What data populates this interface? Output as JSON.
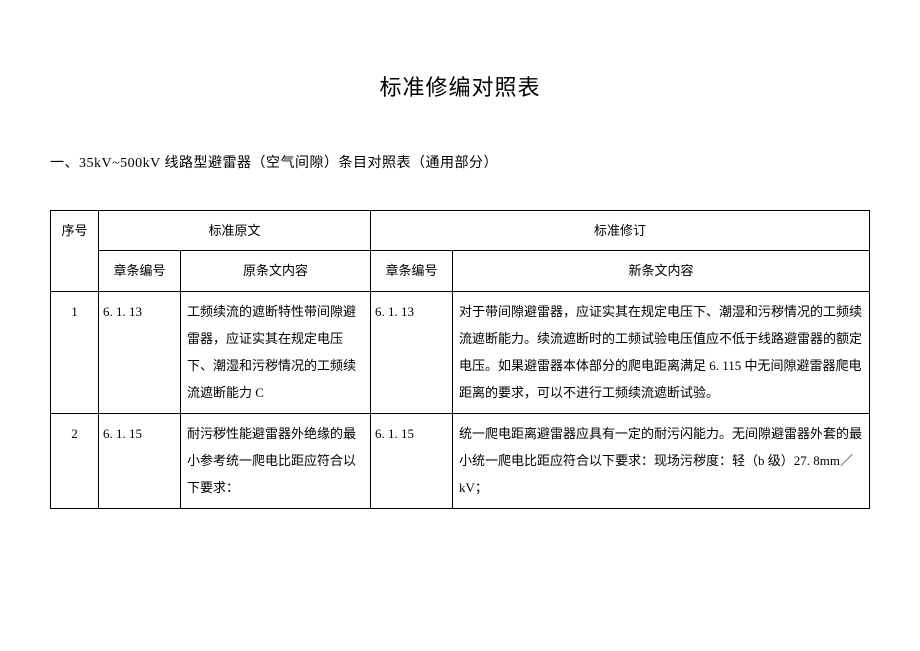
{
  "title": "标准修编对照表",
  "subtitle": "一、35kV~500kV 线路型避雷器（空气间隙）条目对照表（通用部分）",
  "table": {
    "header_group_orig": "标准原文",
    "header_group_rev": "标准修订",
    "col_seq": "序号",
    "col_chap_orig": "章条编号",
    "col_content_orig": "原条文内容",
    "col_chap_rev": "章条编号",
    "col_content_rev": "新条文内容",
    "rows": [
      {
        "seq": "1",
        "chap_orig": "6. 1. 13",
        "content_orig": "工频续流的遮断特性带间隙避雷器，应证实其在规定电压下、潮湿和污秽情况的工频续流遮断能力 C",
        "chap_rev": "6. 1. 13",
        "content_rev": "对于带间隙避雷器，应证实其在规定电压下、潮湿和污秽情况的工频续流遮断能力。续流遮断时的工频试验电压值应不低于线路避雷器的额定电压。如果避雷器本体部分的爬电距离满足 6. 115 中无间隙避雷器爬电距离的要求，可以不进行工频续流遮断试验。"
      },
      {
        "seq": "2",
        "chap_orig": "6. 1. 15",
        "content_orig": "耐污秽性能避雷器外绝缘的最小参考统一爬电比距应符合以下要求：",
        "chap_rev": "6. 1. 15",
        "content_rev": "统一爬电距离避雷器应具有一定的耐污闪能力。无间隙避雷器外套的最小统一爬电比距应符合以下要求：现场污秽度：轻（b 级）27. 8mm／kV；"
      }
    ]
  }
}
